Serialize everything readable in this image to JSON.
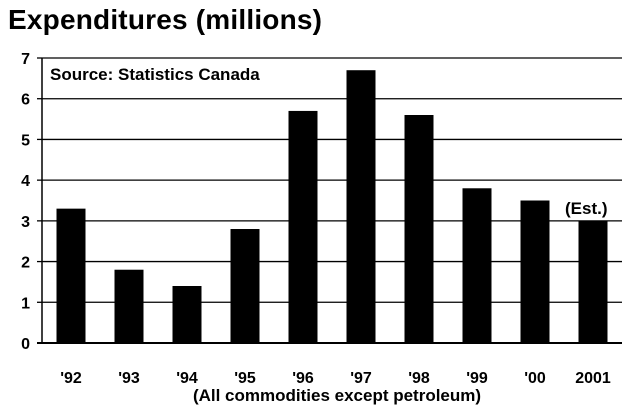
{
  "chart_data": {
    "type": "bar",
    "title": "Expenditures (millions)",
    "source": "Source: Statistics Canada",
    "xlabel": "(All commodities except petroleum)",
    "ylabel": "",
    "categories": [
      "'92",
      "'93",
      "'94",
      "'95",
      "'96",
      "'97",
      "'98",
      "'99",
      "'00",
      "2001"
    ],
    "values": [
      3.3,
      1.8,
      1.4,
      2.8,
      5.7,
      6.7,
      5.6,
      3.8,
      3.5,
      3.0
    ],
    "ylim": [
      0,
      7
    ],
    "yticks": [
      "0",
      "1",
      "2",
      "3",
      "4",
      "5",
      "6",
      "7"
    ],
    "annotation": {
      "text": "(Est.)",
      "category": "2001"
    },
    "grid": true,
    "bar_color": "#000000"
  }
}
